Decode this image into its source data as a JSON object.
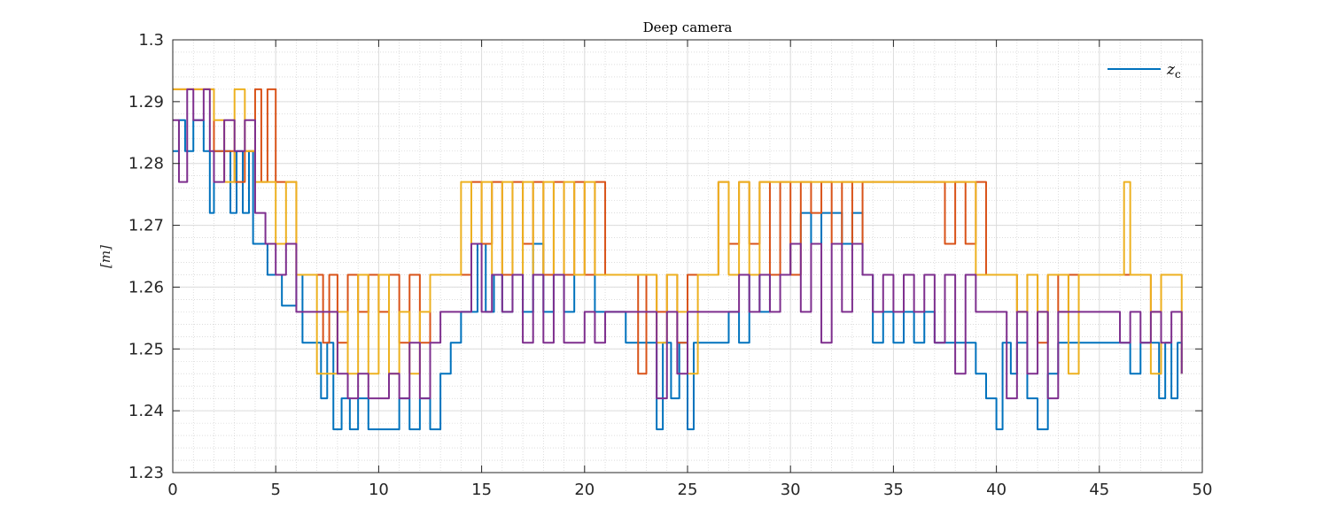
{
  "chart_data": {
    "type": "line",
    "title": "Deep camera",
    "xlabel": "",
    "ylabel": "[m]",
    "xlim": [
      0,
      50
    ],
    "ylim": [
      1.23,
      1.3
    ],
    "xticks": [
      0,
      5,
      10,
      15,
      20,
      25,
      30,
      35,
      40,
      45,
      50
    ],
    "yticks": [
      1.23,
      1.24,
      1.25,
      1.26,
      1.27,
      1.28,
      1.29,
      1.3
    ],
    "ytick_labels": [
      "1.23",
      "1.24",
      "1.25",
      "1.26",
      "1.27",
      "1.28",
      "1.29",
      "1.3"
    ],
    "grid": true,
    "minor_grid": true,
    "legend": {
      "position": "top-right",
      "entries": [
        {
          "label": "z",
          "subscript": "c",
          "color": "#0072BD"
        }
      ]
    },
    "series": [
      {
        "color": "#0072BD",
        "x": [
          0,
          0.3,
          0.6,
          1.0,
          1.5,
          1.8,
          2.0,
          2.5,
          2.8,
          3.1,
          3.4,
          3.7,
          3.9,
          4.3,
          4.6,
          5.0,
          5.3,
          5.6,
          6.0,
          6.3,
          6.6,
          6.9,
          7.2,
          7.5,
          7.8,
          8.2,
          8.6,
          9.0,
          9.5,
          10.0,
          10.5,
          11.0,
          11.5,
          12.0,
          12.5,
          13.0,
          13.5,
          14.0,
          14.4,
          14.8,
          15.2,
          15.6,
          16.0,
          16.5,
          17.0,
          17.5,
          18.0,
          18.5,
          19.0,
          19.5,
          20.0,
          20.5,
          21.0,
          21.5,
          22.0,
          22.5,
          23.0,
          23.5,
          23.8,
          24.2,
          24.6,
          25.0,
          25.3,
          25.6,
          26.0,
          26.5,
          27.0,
          27.5,
          28.0,
          28.5,
          29.0,
          29.5,
          30.0,
          30.5,
          31.0,
          31.5,
          32.0,
          32.5,
          33.0,
          33.5,
          34.0,
          34.5,
          35.0,
          35.5,
          36.0,
          36.5,
          37.0,
          37.5,
          38.0,
          38.5,
          39.0,
          39.5,
          40.0,
          40.3,
          40.7,
          41.0,
          41.5,
          42.0,
          42.5,
          43.0,
          43.5,
          44.0,
          44.5,
          45.0,
          45.5,
          46.0,
          46.5,
          47.0,
          47.5,
          47.9,
          48.2,
          48.5,
          48.8,
          49.0
        ],
        "y": [
          1.282,
          1.287,
          1.282,
          1.287,
          1.282,
          1.272,
          1.282,
          1.282,
          1.272,
          1.282,
          1.272,
          1.282,
          1.267,
          1.267,
          1.262,
          1.262,
          1.257,
          1.257,
          1.262,
          1.251,
          1.251,
          1.251,
          1.242,
          1.251,
          1.237,
          1.242,
          1.237,
          1.242,
          1.237,
          1.237,
          1.237,
          1.242,
          1.237,
          1.242,
          1.237,
          1.246,
          1.251,
          1.256,
          1.256,
          1.267,
          1.256,
          1.262,
          1.256,
          1.262,
          1.256,
          1.267,
          1.256,
          1.262,
          1.256,
          1.262,
          1.262,
          1.256,
          1.256,
          1.256,
          1.251,
          1.251,
          1.251,
          1.237,
          1.251,
          1.242,
          1.251,
          1.237,
          1.251,
          1.251,
          1.251,
          1.251,
          1.256,
          1.251,
          1.262,
          1.256,
          1.262,
          1.262,
          1.267,
          1.272,
          1.267,
          1.272,
          1.272,
          1.267,
          1.272,
          1.262,
          1.251,
          1.256,
          1.251,
          1.256,
          1.251,
          1.256,
          1.251,
          1.251,
          1.251,
          1.251,
          1.246,
          1.242,
          1.237,
          1.251,
          1.246,
          1.251,
          1.242,
          1.237,
          1.246,
          1.251,
          1.251,
          1.251,
          1.251,
          1.251,
          1.251,
          1.251,
          1.246,
          1.251,
          1.251,
          1.242,
          1.251,
          1.242,
          1.251,
          1.246
        ]
      },
      {
        "color": "#D95319",
        "x": [
          0,
          0.5,
          1.0,
          1.5,
          2.0,
          2.5,
          3.0,
          3.5,
          4.0,
          4.3,
          4.6,
          5.0,
          5.5,
          6.0,
          6.3,
          6.6,
          7.0,
          7.3,
          7.6,
          8.0,
          8.5,
          9.0,
          9.5,
          10.0,
          10.5,
          11.0,
          11.5,
          12.0,
          12.5,
          13.0,
          13.5,
          14.0,
          14.5,
          15.0,
          15.5,
          16.0,
          16.5,
          17.0,
          17.5,
          18.0,
          18.5,
          19.0,
          19.5,
          20.0,
          20.5,
          21.0,
          21.5,
          22.0,
          22.6,
          23.0,
          23.5,
          24.0,
          24.5,
          25.0,
          25.5,
          26.0,
          26.5,
          27.0,
          27.5,
          28.0,
          28.5,
          29.0,
          29.5,
          30.0,
          30.5,
          31.0,
          31.5,
          32.0,
          32.5,
          33.0,
          33.5,
          34.0,
          34.5,
          35.0,
          35.5,
          36.0,
          36.5,
          37.0,
          37.5,
          38.0,
          38.5,
          39.0,
          39.5,
          40.0,
          40.5,
          41.0,
          41.5,
          42.0,
          42.5,
          43.0,
          43.5,
          44.0,
          44.5,
          45.0,
          45.5,
          46.0,
          46.5,
          47.0,
          47.5,
          48.0,
          48.5,
          49.0
        ],
        "y": [
          1.292,
          1.292,
          1.292,
          1.292,
          1.282,
          1.282,
          1.277,
          1.282,
          1.292,
          1.277,
          1.292,
          1.277,
          1.277,
          1.262,
          1.262,
          1.262,
          1.262,
          1.251,
          1.262,
          1.251,
          1.262,
          1.256,
          1.262,
          1.256,
          1.262,
          1.251,
          1.262,
          1.251,
          1.262,
          1.262,
          1.262,
          1.262,
          1.277,
          1.267,
          1.277,
          1.262,
          1.277,
          1.267,
          1.277,
          1.262,
          1.277,
          1.262,
          1.277,
          1.262,
          1.277,
          1.262,
          1.262,
          1.262,
          1.246,
          1.262,
          1.256,
          1.262,
          1.251,
          1.262,
          1.262,
          1.262,
          1.277,
          1.267,
          1.277,
          1.267,
          1.277,
          1.262,
          1.277,
          1.262,
          1.277,
          1.272,
          1.277,
          1.267,
          1.277,
          1.267,
          1.277,
          1.277,
          1.277,
          1.277,
          1.277,
          1.277,
          1.277,
          1.277,
          1.267,
          1.277,
          1.267,
          1.277,
          1.262,
          1.262,
          1.262,
          1.256,
          1.262,
          1.251,
          1.262,
          1.256,
          1.262,
          1.262,
          1.262,
          1.262,
          1.262,
          1.262,
          1.262,
          1.262,
          1.256,
          1.262,
          1.262,
          1.262
        ]
      },
      {
        "color": "#EDB120",
        "x": [
          0,
          0.5,
          1.0,
          1.5,
          2.0,
          2.5,
          3.0,
          3.5,
          4.0,
          4.5,
          5.0,
          5.5,
          6.0,
          6.5,
          7.0,
          7.5,
          8.0,
          8.5,
          9.0,
          9.5,
          10.0,
          10.5,
          11.0,
          11.5,
          12.0,
          12.5,
          13.0,
          13.5,
          14.0,
          14.5,
          15.0,
          15.5,
          16.0,
          16.5,
          17.0,
          17.5,
          18.0,
          18.5,
          19.0,
          19.5,
          20.0,
          20.5,
          21.0,
          21.5,
          22.0,
          22.5,
          23.0,
          23.5,
          24.0,
          24.5,
          25.0,
          25.5,
          26.0,
          26.5,
          27.0,
          27.5,
          28.0,
          28.5,
          29.0,
          29.5,
          30.0,
          30.5,
          31.0,
          31.5,
          32.0,
          32.5,
          33.0,
          33.5,
          34.0,
          34.5,
          35.0,
          35.5,
          36.0,
          36.5,
          37.0,
          37.5,
          38.0,
          38.5,
          39.0,
          39.5,
          40.0,
          40.5,
          41.0,
          41.5,
          42.0,
          42.5,
          43.0,
          43.5,
          44.0,
          44.5,
          45.0,
          45.5,
          45.9,
          46.2,
          46.5,
          47.0,
          47.5,
          48.0,
          48.5,
          49.0
        ],
        "y": [
          1.292,
          1.292,
          1.292,
          1.292,
          1.287,
          1.277,
          1.292,
          1.282,
          1.277,
          1.277,
          1.267,
          1.277,
          1.262,
          1.262,
          1.246,
          1.246,
          1.256,
          1.246,
          1.262,
          1.246,
          1.262,
          1.246,
          1.256,
          1.246,
          1.256,
          1.262,
          1.262,
          1.262,
          1.277,
          1.267,
          1.277,
          1.262,
          1.277,
          1.262,
          1.277,
          1.262,
          1.277,
          1.262,
          1.277,
          1.262,
          1.277,
          1.262,
          1.262,
          1.262,
          1.262,
          1.262,
          1.262,
          1.251,
          1.262,
          1.256,
          1.246,
          1.262,
          1.262,
          1.277,
          1.262,
          1.277,
          1.262,
          1.277,
          1.277,
          1.277,
          1.277,
          1.277,
          1.277,
          1.277,
          1.277,
          1.277,
          1.277,
          1.277,
          1.277,
          1.277,
          1.277,
          1.277,
          1.277,
          1.277,
          1.277,
          1.277,
          1.277,
          1.277,
          1.262,
          1.262,
          1.262,
          1.262,
          1.256,
          1.262,
          1.256,
          1.262,
          1.262,
          1.246,
          1.262,
          1.262,
          1.262,
          1.262,
          1.262,
          1.277,
          1.262,
          1.262,
          1.246,
          1.262,
          1.262,
          1.246
        ]
      },
      {
        "color": "#7E2F8E",
        "x": [
          0,
          0.3,
          0.7,
          1.0,
          1.5,
          1.8,
          2.0,
          2.5,
          3.0,
          3.5,
          4.0,
          4.5,
          5.0,
          5.5,
          6.0,
          6.5,
          7.0,
          7.5,
          8.0,
          8.5,
          9.0,
          9.5,
          10.0,
          10.5,
          11.0,
          11.5,
          12.0,
          12.5,
          13.0,
          13.5,
          14.0,
          14.5,
          15.0,
          15.5,
          16.0,
          16.5,
          17.0,
          17.5,
          18.0,
          18.5,
          19.0,
          19.5,
          20.0,
          20.5,
          21.0,
          21.5,
          22.0,
          22.5,
          23.0,
          23.5,
          24.0,
          24.5,
          25.0,
          25.5,
          26.0,
          26.5,
          27.0,
          27.5,
          28.0,
          28.5,
          29.0,
          29.5,
          30.0,
          30.5,
          31.0,
          31.5,
          32.0,
          32.5,
          33.0,
          33.5,
          34.0,
          34.5,
          35.0,
          35.5,
          36.0,
          36.5,
          37.0,
          37.5,
          38.0,
          38.5,
          39.0,
          39.5,
          40.0,
          40.5,
          41.0,
          41.5,
          42.0,
          42.5,
          43.0,
          43.5,
          44.0,
          44.5,
          45.0,
          45.5,
          46.0,
          46.5,
          47.0,
          47.5,
          48.0,
          48.5,
          49.0
        ],
        "y": [
          1.287,
          1.277,
          1.292,
          1.287,
          1.292,
          1.282,
          1.277,
          1.287,
          1.282,
          1.287,
          1.272,
          1.267,
          1.262,
          1.267,
          1.256,
          1.256,
          1.256,
          1.256,
          1.246,
          1.242,
          1.246,
          1.242,
          1.242,
          1.246,
          1.242,
          1.251,
          1.242,
          1.251,
          1.256,
          1.256,
          1.256,
          1.267,
          1.256,
          1.262,
          1.256,
          1.262,
          1.251,
          1.262,
          1.251,
          1.262,
          1.251,
          1.251,
          1.256,
          1.251,
          1.256,
          1.256,
          1.256,
          1.256,
          1.256,
          1.242,
          1.256,
          1.246,
          1.256,
          1.256,
          1.256,
          1.256,
          1.256,
          1.262,
          1.256,
          1.262,
          1.256,
          1.262,
          1.267,
          1.256,
          1.267,
          1.251,
          1.267,
          1.256,
          1.267,
          1.262,
          1.256,
          1.262,
          1.256,
          1.262,
          1.256,
          1.262,
          1.251,
          1.262,
          1.246,
          1.262,
          1.256,
          1.256,
          1.256,
          1.242,
          1.256,
          1.246,
          1.256,
          1.242,
          1.256,
          1.256,
          1.256,
          1.256,
          1.256,
          1.256,
          1.251,
          1.256,
          1.251,
          1.256,
          1.251,
          1.256,
          1.246
        ]
      }
    ]
  }
}
